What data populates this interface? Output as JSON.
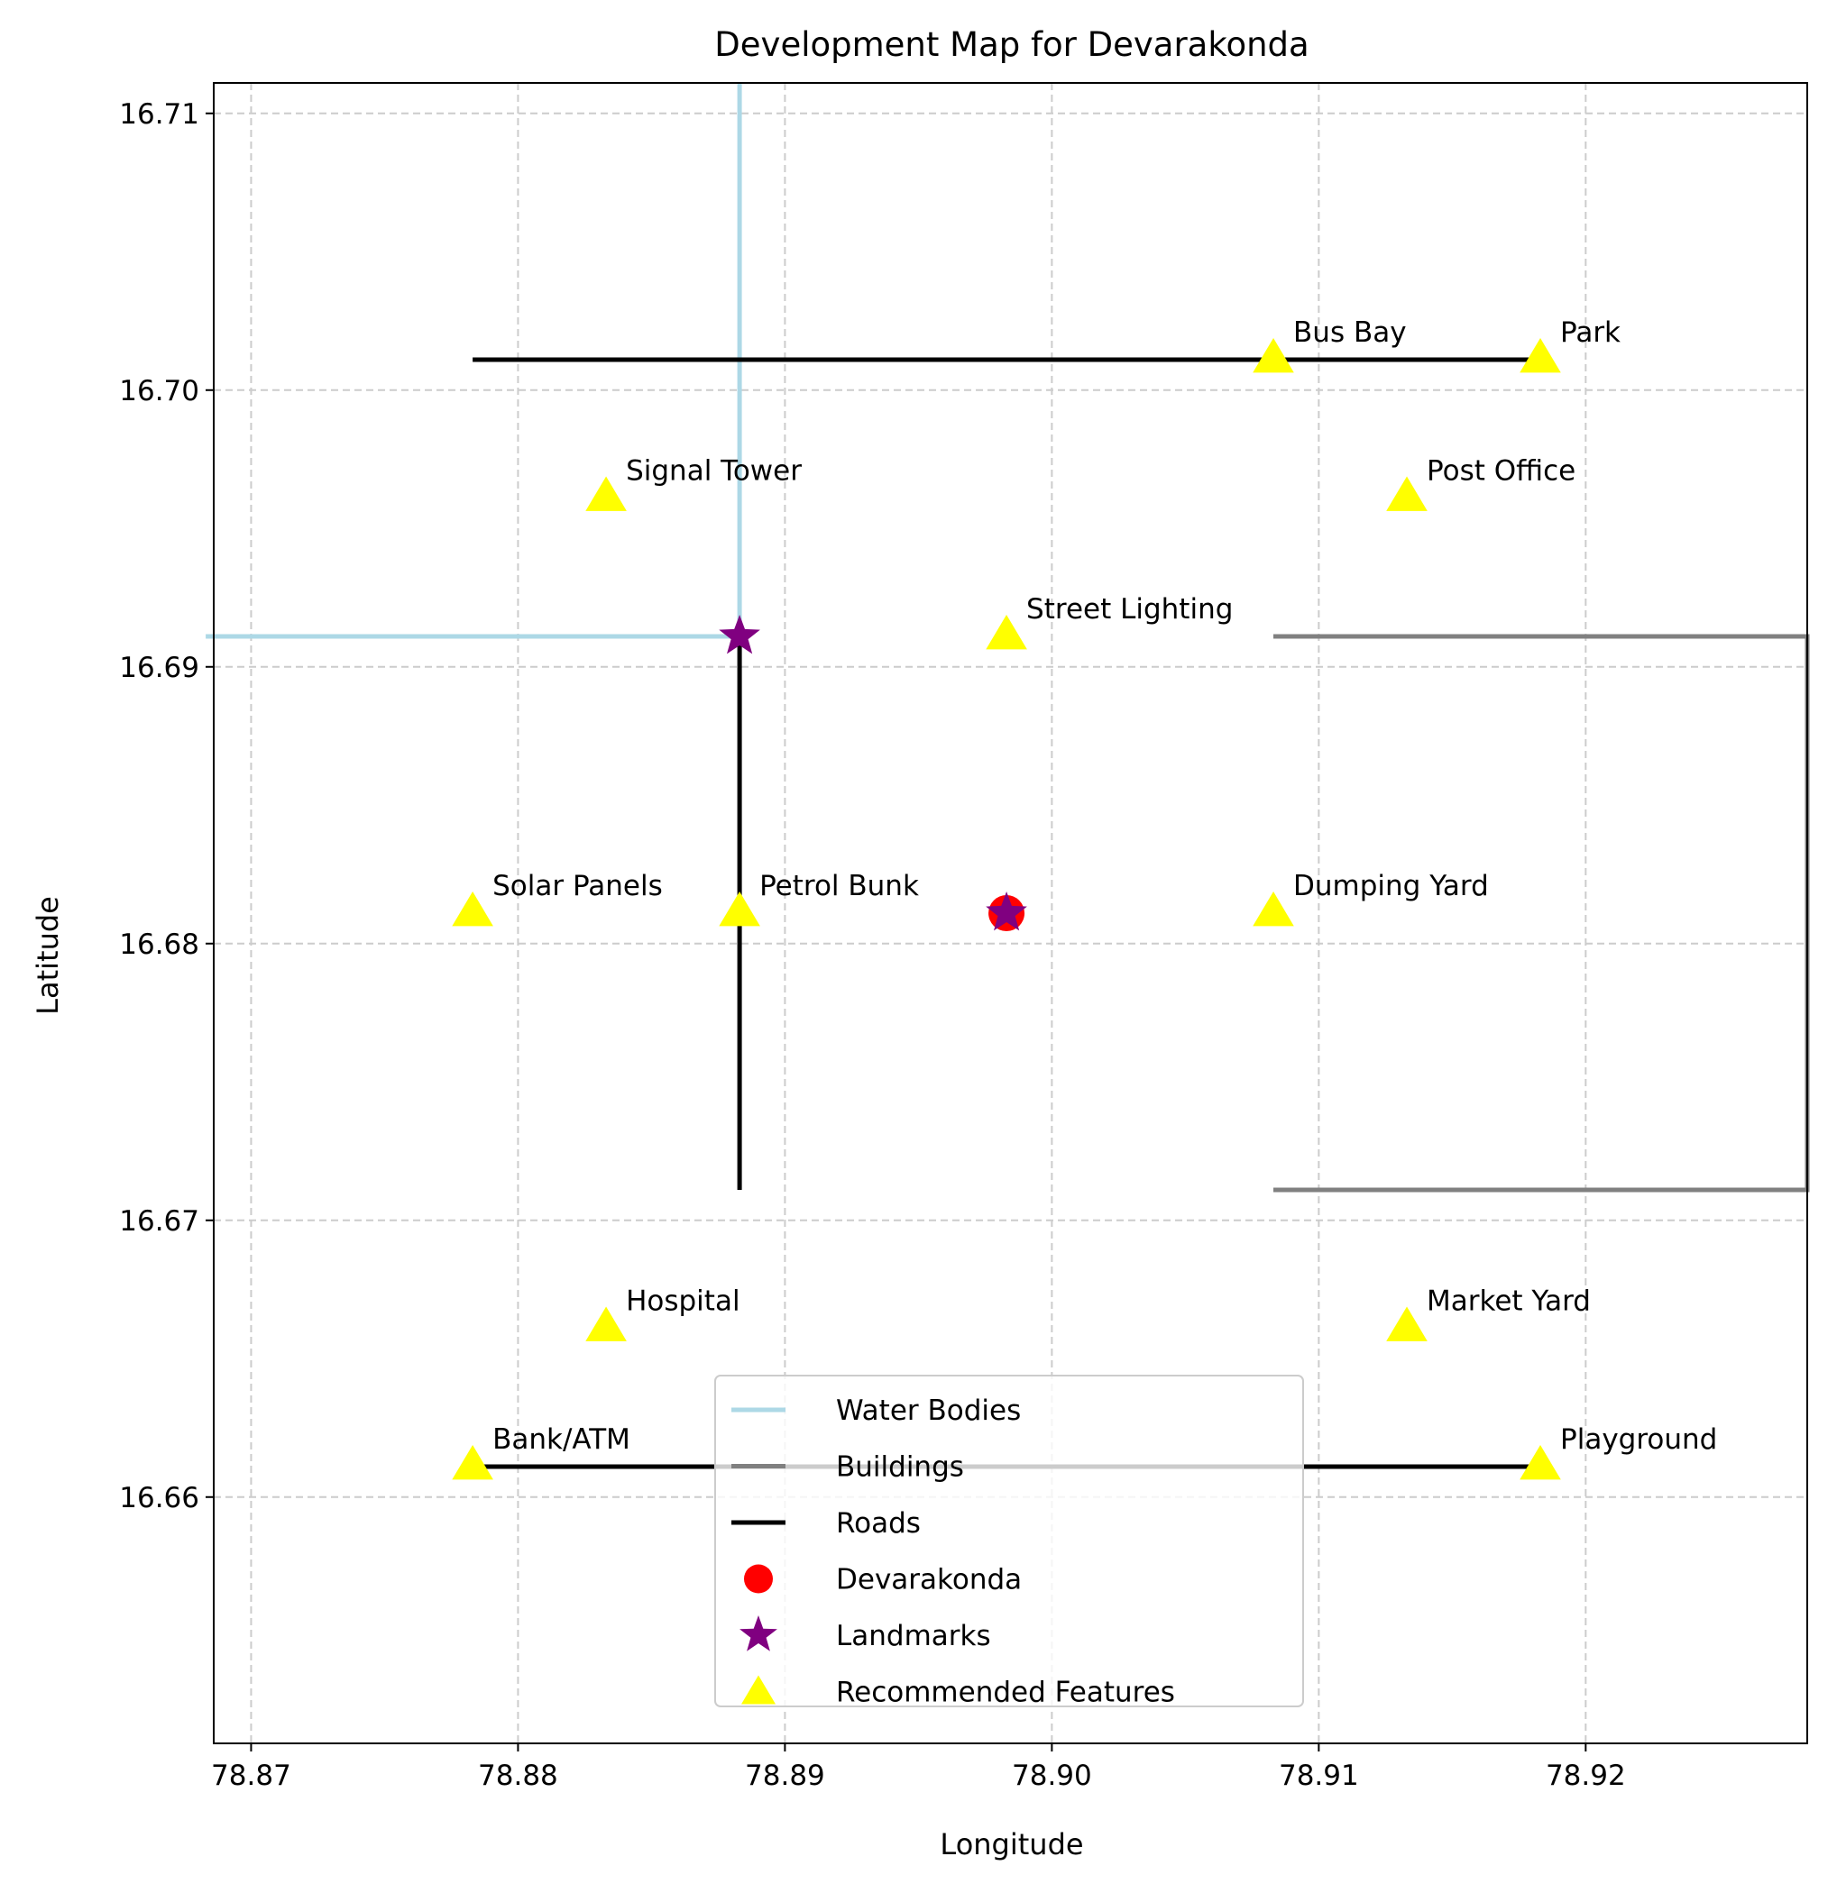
{
  "chart_data": {
    "type": "scatter",
    "title": "Development Map for Devarakonda",
    "xlabel": "Longitude",
    "ylabel": "Latitude",
    "xlim": [
      78.8686,
      78.9283
    ],
    "ylim": [
      16.6511,
      16.7111
    ],
    "xticks": [
      78.87,
      78.88,
      78.89,
      78.9,
      78.91,
      78.92
    ],
    "xtick_labels": [
      "78.87",
      "78.88",
      "78.89",
      "78.90",
      "78.91",
      "78.92"
    ],
    "yticks": [
      16.66,
      16.67,
      16.68,
      16.69,
      16.7,
      16.71
    ],
    "ytick_labels": [
      "16.66",
      "16.67",
      "16.68",
      "16.69",
      "16.70",
      "16.71"
    ],
    "grid": true,
    "legend_position": "lower center",
    "colors": {
      "water": "#add8e6",
      "buildings": "#808080",
      "roads": "#000000",
      "center": "#ff0000",
      "landmarks": "#800080",
      "features": "#ffff00",
      "grid": "#cccccc"
    },
    "water_bodies": [
      {
        "x": [
          78.8883,
          78.8883
        ],
        "y": [
          16.6911,
          16.7111
        ]
      },
      {
        "x": [
          78.8683,
          78.8883
        ],
        "y": [
          16.6911,
          16.6911
        ]
      }
    ],
    "buildings": [
      {
        "x": [
          78.9083,
          78.9283,
          78.9283,
          78.9083
        ],
        "y": [
          16.6911,
          16.6911,
          16.6711,
          16.6711
        ]
      }
    ],
    "roads": [
      {
        "x": [
          78.8783,
          78.9183
        ],
        "y": [
          16.7011,
          16.7011
        ]
      },
      {
        "x": [
          78.8883,
          78.8883
        ],
        "y": [
          16.6911,
          16.6711
        ]
      },
      {
        "x": [
          78.8783,
          78.9183
        ],
        "y": [
          16.6611,
          16.6611
        ]
      }
    ],
    "center": {
      "name": "Devarakonda",
      "x": 78.8983,
      "y": 16.6811
    },
    "landmarks": [
      {
        "x": 78.8883,
        "y": 16.6911
      },
      {
        "x": 78.8983,
        "y": 16.6811
      }
    ],
    "features": [
      {
        "label": "Bus Bay",
        "x": 78.9083,
        "y": 16.7011
      },
      {
        "label": "Park",
        "x": 78.9183,
        "y": 16.7011
      },
      {
        "label": "Signal Tower",
        "x": 78.8833,
        "y": 16.6961
      },
      {
        "label": "Post Office",
        "x": 78.9133,
        "y": 16.6961
      },
      {
        "label": "Street Lighting",
        "x": 78.8983,
        "y": 16.6911
      },
      {
        "label": "Solar Panels",
        "x": 78.8783,
        "y": 16.6811
      },
      {
        "label": "Petrol Bunk",
        "x": 78.8883,
        "y": 16.6811
      },
      {
        "label": "Dumping Yard",
        "x": 78.9083,
        "y": 16.6811
      },
      {
        "label": "Hospital",
        "x": 78.8833,
        "y": 16.6661
      },
      {
        "label": "Market Yard",
        "x": 78.9133,
        "y": 16.6661
      },
      {
        "label": "Bank/ATM",
        "x": 78.8783,
        "y": 16.6611
      },
      {
        "label": "Playground",
        "x": 78.9183,
        "y": 16.6611
      }
    ],
    "legend": [
      {
        "label": "Water Bodies",
        "kind": "line",
        "color_key": "water"
      },
      {
        "label": "Buildings",
        "kind": "line",
        "color_key": "buildings"
      },
      {
        "label": "Roads",
        "kind": "line",
        "color_key": "roads"
      },
      {
        "label": "Devarakonda",
        "kind": "circle",
        "color_key": "center"
      },
      {
        "label": "Landmarks",
        "kind": "star",
        "color_key": "landmarks"
      },
      {
        "label": "Recommended Features",
        "kind": "triangle",
        "color_key": "features"
      }
    ]
  }
}
